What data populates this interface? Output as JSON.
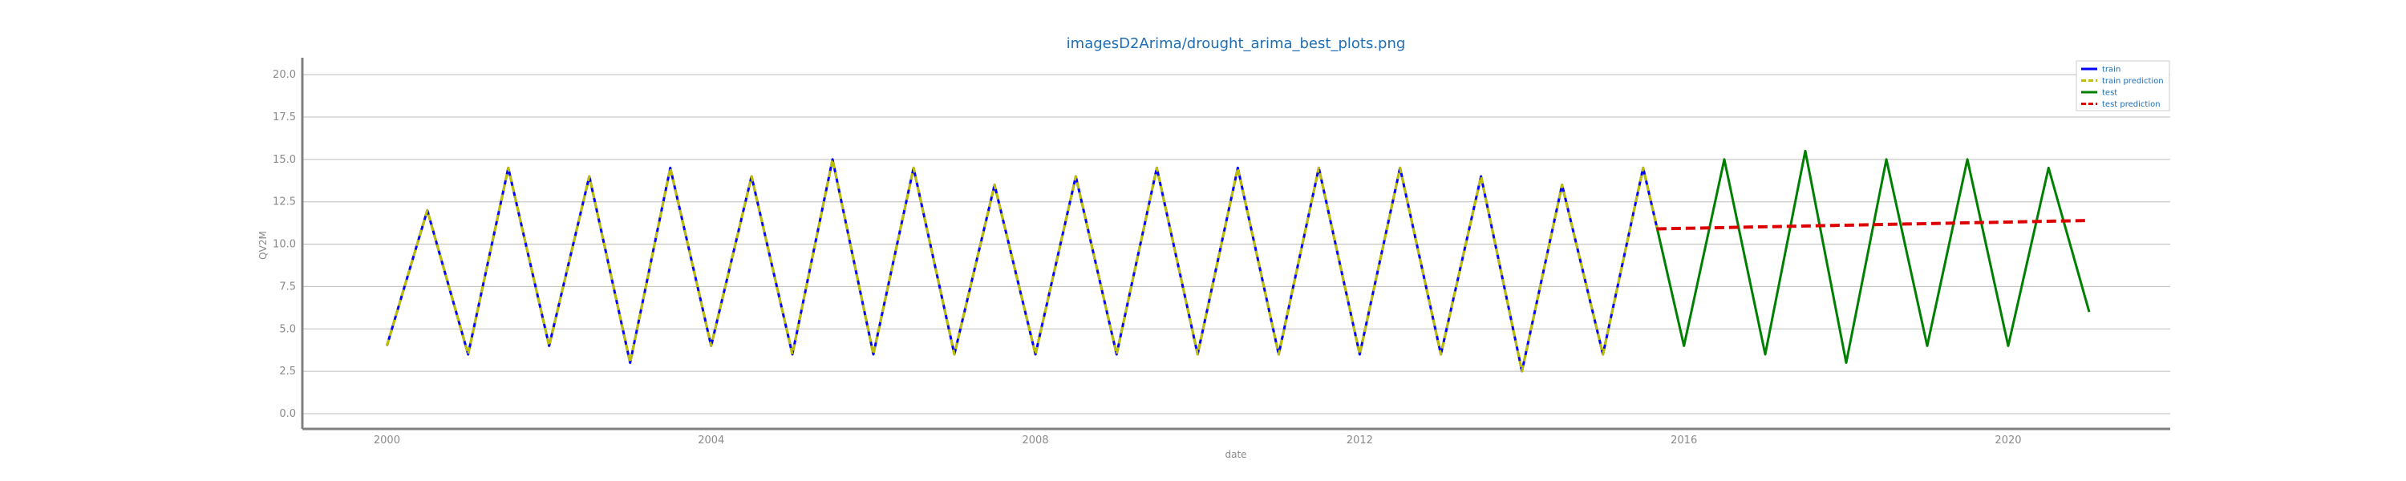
{
  "chart_data": {
    "type": "line",
    "title": "imagesD2Arima/drought_arima_best_plots.png",
    "xlabel": "date",
    "ylabel": "QV2M",
    "xlim": [
      "1998-12-16",
      "2021-12-31"
    ],
    "ylim": [
      -0.9,
      21.0
    ],
    "x_ticks": [
      "2000",
      "2004",
      "2008",
      "2012",
      "2016",
      "2020"
    ],
    "y_ticks": [
      "0.0",
      "2.5",
      "5.0",
      "7.5",
      "10.0",
      "12.5",
      "15.0",
      "17.5",
      "20.0"
    ],
    "grid": "horizontal",
    "legend_position": "top-right",
    "series": [
      {
        "name": "train",
        "color": "#0000ff",
        "style": "solid",
        "x": [
          "2000-01-01",
          "2000-07-01",
          "2001-01-01",
          "2001-07-01",
          "2002-01-01",
          "2002-07-01",
          "2003-01-01",
          "2003-07-01",
          "2004-01-01",
          "2004-07-01",
          "2005-01-01",
          "2005-07-01",
          "2006-01-01",
          "2006-07-01",
          "2007-01-01",
          "2007-07-01",
          "2008-01-01",
          "2008-07-01",
          "2009-01-01",
          "2009-07-01",
          "2010-01-01",
          "2010-07-01",
          "2011-01-01",
          "2011-07-01",
          "2012-01-01",
          "2012-07-01",
          "2013-01-01",
          "2013-07-01",
          "2014-01-01",
          "2014-07-01",
          "2015-01-01",
          "2015-07-01",
          "2015-09-01"
        ],
        "values": [
          4.0,
          12.0,
          3.5,
          14.5,
          4.0,
          14.0,
          3.0,
          14.5,
          4.0,
          14.0,
          3.5,
          15.0,
          3.5,
          14.5,
          3.5,
          13.5,
          3.5,
          14.0,
          3.5,
          14.5,
          3.5,
          14.5,
          3.5,
          14.5,
          3.5,
          14.5,
          3.5,
          14.0,
          2.5,
          13.5,
          3.5,
          14.5,
          11.0
        ]
      },
      {
        "name": "train prediction",
        "color": "#bfbf00",
        "style": "dashed",
        "x": [
          "2000-01-01",
          "2000-07-01",
          "2001-01-01",
          "2001-07-01",
          "2002-01-01",
          "2002-07-01",
          "2003-01-01",
          "2003-07-01",
          "2004-01-01",
          "2004-07-01",
          "2005-01-01",
          "2005-07-01",
          "2006-01-01",
          "2006-07-01",
          "2007-01-01",
          "2007-07-01",
          "2008-01-01",
          "2008-07-01",
          "2009-01-01",
          "2009-07-01",
          "2010-01-01",
          "2010-07-01",
          "2011-01-01",
          "2011-07-01",
          "2012-01-01",
          "2012-07-01",
          "2013-01-01",
          "2013-07-01",
          "2014-01-01",
          "2014-07-01",
          "2015-01-01",
          "2015-07-01",
          "2015-09-01"
        ],
        "values": [
          4.0,
          12.0,
          3.5,
          14.5,
          4.0,
          14.0,
          3.0,
          14.5,
          4.0,
          14.0,
          3.5,
          15.0,
          3.5,
          14.5,
          3.5,
          13.5,
          3.5,
          14.0,
          3.5,
          14.5,
          3.5,
          14.5,
          3.5,
          14.5,
          3.5,
          14.5,
          3.5,
          14.0,
          2.5,
          13.5,
          3.5,
          14.5,
          11.0
        ]
      },
      {
        "name": "test",
        "color": "#008000",
        "style": "solid",
        "x": [
          "2015-09-01",
          "2016-01-01",
          "2016-07-01",
          "2017-01-01",
          "2017-07-01",
          "2018-01-01",
          "2018-07-01",
          "2019-01-01",
          "2019-07-01",
          "2020-01-01",
          "2020-07-01",
          "2020-12-31"
        ],
        "values": [
          11.0,
          4.0,
          15.0,
          3.5,
          15.5,
          3.0,
          15.0,
          4.0,
          15.0,
          4.0,
          14.5,
          6.0
        ]
      },
      {
        "name": "test prediction",
        "color": "#dd0000",
        "style": "dashed",
        "x": [
          "2015-09-01",
          "2020-12-31"
        ],
        "values": [
          10.9,
          11.4
        ]
      }
    ]
  }
}
